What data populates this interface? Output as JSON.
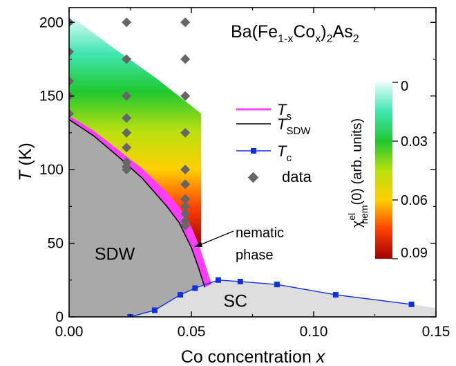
{
  "chart_data": {
    "type": "phase-diagram",
    "title": "Ba(Fe1-xCox)2As2",
    "title_parts": {
      "a": "Ba(Fe",
      "b": "1-x",
      "c": "Co",
      "d": "x",
      "e": ")",
      "f": "2",
      "g": "As",
      "h": "2"
    },
    "xlabel": "Co concentration ",
    "xlabel_var": "x",
    "ylabel_var": "T",
    "ylabel_unit": " (K)",
    "xlim": [
      0.0,
      0.15
    ],
    "ylim": [
      0,
      210
    ],
    "xticks": [
      0.0,
      0.05,
      0.1,
      0.15
    ],
    "xtick_labels": [
      "0.00",
      "0.05",
      "0.10",
      "0.15"
    ],
    "yticks": [
      0,
      50,
      100,
      150,
      200
    ],
    "ytick_labels": [
      "0",
      "50",
      "100",
      "150",
      "200"
    ],
    "colorbar": {
      "label_main": "χ",
      "label_sup": "el",
      "label_sub": "nem",
      "label_tail": "(0) (arb. units)",
      "ticks": [
        0,
        0.03,
        0.06,
        0.09
      ],
      "tick_labels": [
        "0",
        "0.03",
        "0.06",
        "0.09"
      ],
      "colors": [
        "#e8fcfc",
        "#40e6b0",
        "#20c830",
        "#b8e010",
        "#ffd000",
        "#ff4000",
        "#a00000"
      ]
    },
    "series": [
      {
        "name": "T_s",
        "label_main": "T",
        "label_sub": "s",
        "color": "#ff40ff",
        "x": [
          0.0,
          0.01,
          0.02,
          0.03,
          0.04,
          0.045,
          0.05,
          0.053,
          0.058
        ],
        "y": [
          136,
          126,
          113,
          100,
          84,
          74,
          60,
          48,
          22
        ]
      },
      {
        "name": "T_SDW",
        "label_main": "T",
        "label_sub": "SDW",
        "color": "#000000",
        "x": [
          0.0,
          0.01,
          0.02,
          0.03,
          0.04,
          0.045,
          0.05,
          0.053,
          0.0555
        ],
        "y": [
          134,
          123,
          109,
          94,
          75,
          64,
          47,
          33,
          20
        ]
      },
      {
        "name": "T_c",
        "label_main": "T",
        "label_sub": "c",
        "color": "#1030e0",
        "x": [
          0.025,
          0.035,
          0.0455,
          0.0515,
          0.061,
          0.07,
          0.085,
          0.109,
          0.14
        ],
        "y": [
          0,
          4.5,
          15,
          19.5,
          25,
          24,
          22,
          15,
          8.5
        ]
      }
    ],
    "data_points": {
      "name": "data",
      "color": "#666666",
      "x": [
        0.0,
        0.0,
        0.0,
        0.0,
        0.0,
        0.0235,
        0.0235,
        0.0235,
        0.0235,
        0.0235,
        0.0235,
        0.0235,
        0.0235,
        0.0235,
        0.0475,
        0.0475,
        0.0475,
        0.0475,
        0.0475,
        0.0475,
        0.0475,
        0.0475,
        0.0475,
        0.0475,
        0.0475
      ],
      "y": [
        200,
        180,
        160,
        150,
        138,
        200,
        175,
        150,
        135,
        125,
        115,
        105,
        102,
        100,
        200,
        175,
        150,
        125,
        100,
        90,
        80,
        75,
        70,
        65,
        62
      ]
    },
    "regions": [
      {
        "label": "SDW",
        "x": 0.013,
        "y": 43
      },
      {
        "label": "SC",
        "x": 0.068,
        "y": 11
      }
    ],
    "annotation": {
      "line1": "nematic",
      "line2": "phase"
    },
    "nematic_extent_x": 0.054,
    "nematic_top_y": [
      205,
      183,
      162,
      138
    ]
  }
}
